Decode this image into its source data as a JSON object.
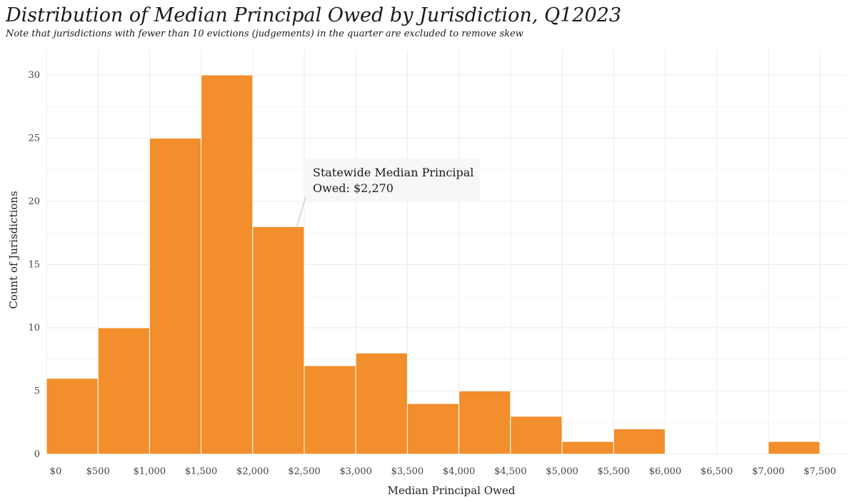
{
  "chart_data": {
    "type": "bar",
    "title": "Distribution of Median Principal Owed by Jurisdiction, Q12023",
    "subtitle": "Note that jurisdictions with fewer than 10 evictions (judgements) in the quarter are excluded to remove skew",
    "xlabel": "Median Principal Owed",
    "ylabel": "Count of Jurisdictions",
    "bin_width": 500,
    "xlim": [
      0,
      7500
    ],
    "ylim": [
      0,
      32
    ],
    "x_ticks": [
      0,
      500,
      1000,
      1500,
      2000,
      2500,
      3000,
      3500,
      4000,
      4500,
      5000,
      5500,
      6000,
      6500,
      7000,
      7500
    ],
    "x_tick_labels": [
      "$0",
      "$500",
      "$1,000",
      "$1,500",
      "$2,000",
      "$2,500",
      "$3,000",
      "$3,500",
      "$4,000",
      "$4,500",
      "$5,000",
      "$5,500",
      "$6,000",
      "$6,500",
      "$7,000",
      "$7,500"
    ],
    "y_ticks": [
      0,
      5,
      10,
      15,
      20,
      25,
      30
    ],
    "y_tick_labels": [
      "0",
      "5",
      "10",
      "15",
      "20",
      "25",
      "30"
    ],
    "bins": [
      {
        "start": 0,
        "end": 500,
        "count": 6
      },
      {
        "start": 500,
        "end": 1000,
        "count": 10
      },
      {
        "start": 1000,
        "end": 1500,
        "count": 25
      },
      {
        "start": 1500,
        "end": 2000,
        "count": 30
      },
      {
        "start": 2000,
        "end": 2500,
        "count": 18
      },
      {
        "start": 2500,
        "end": 3000,
        "count": 7
      },
      {
        "start": 3000,
        "end": 3500,
        "count": 8
      },
      {
        "start": 3500,
        "end": 4000,
        "count": 4
      },
      {
        "start": 4000,
        "end": 4500,
        "count": 5
      },
      {
        "start": 4500,
        "end": 5000,
        "count": 3
      },
      {
        "start": 5000,
        "end": 5500,
        "count": 1
      },
      {
        "start": 5500,
        "end": 6000,
        "count": 2
      },
      {
        "start": 6000,
        "end": 6500,
        "count": 0
      },
      {
        "start": 6500,
        "end": 7000,
        "count": 0
      },
      {
        "start": 7000,
        "end": 7500,
        "count": 1
      }
    ],
    "annotation": {
      "lines": [
        "Statewide Median Principal",
        "Owed: $2,270"
      ],
      "x": 2270,
      "y": 18.5
    },
    "grid": true,
    "colors": {
      "bar": "#f28e2b",
      "bar_edge": "#ffffff",
      "grid": "#ebebeb",
      "annotation_box": "#f7f7f7",
      "leader_line": "#bbbbbb"
    }
  }
}
